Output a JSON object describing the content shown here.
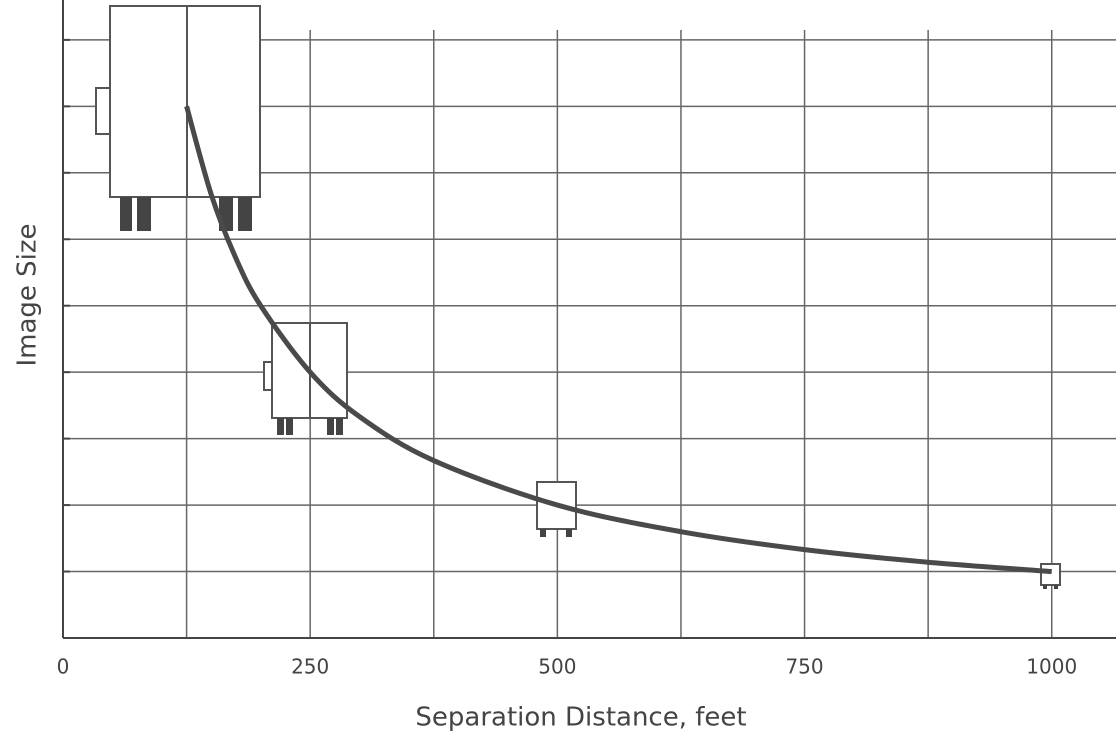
{
  "chart_data": {
    "type": "line",
    "x_label": "Separation Distance, feet",
    "y_label": "Image Size",
    "x": [
      125,
      150,
      175,
      200,
      250,
      300,
      375,
      500,
      625,
      750,
      875,
      1000
    ],
    "values": [
      8,
      6.67,
      5.71,
      5,
      4,
      3.33,
      2.67,
      2,
      1.6,
      1.33,
      1.14,
      1
    ],
    "color": "#4a4a4a",
    "xlim": [
      0,
      1065
    ],
    "ylim": [
      0,
      9.6
    ],
    "xticks": [
      0,
      250,
      500,
      750,
      1000
    ],
    "xgrid": [
      125,
      250,
      375,
      500,
      625,
      750,
      875,
      1000
    ],
    "ygrid": [
      1,
      2,
      3,
      4,
      5,
      6,
      7,
      8,
      9
    ],
    "grid": true
  }
}
